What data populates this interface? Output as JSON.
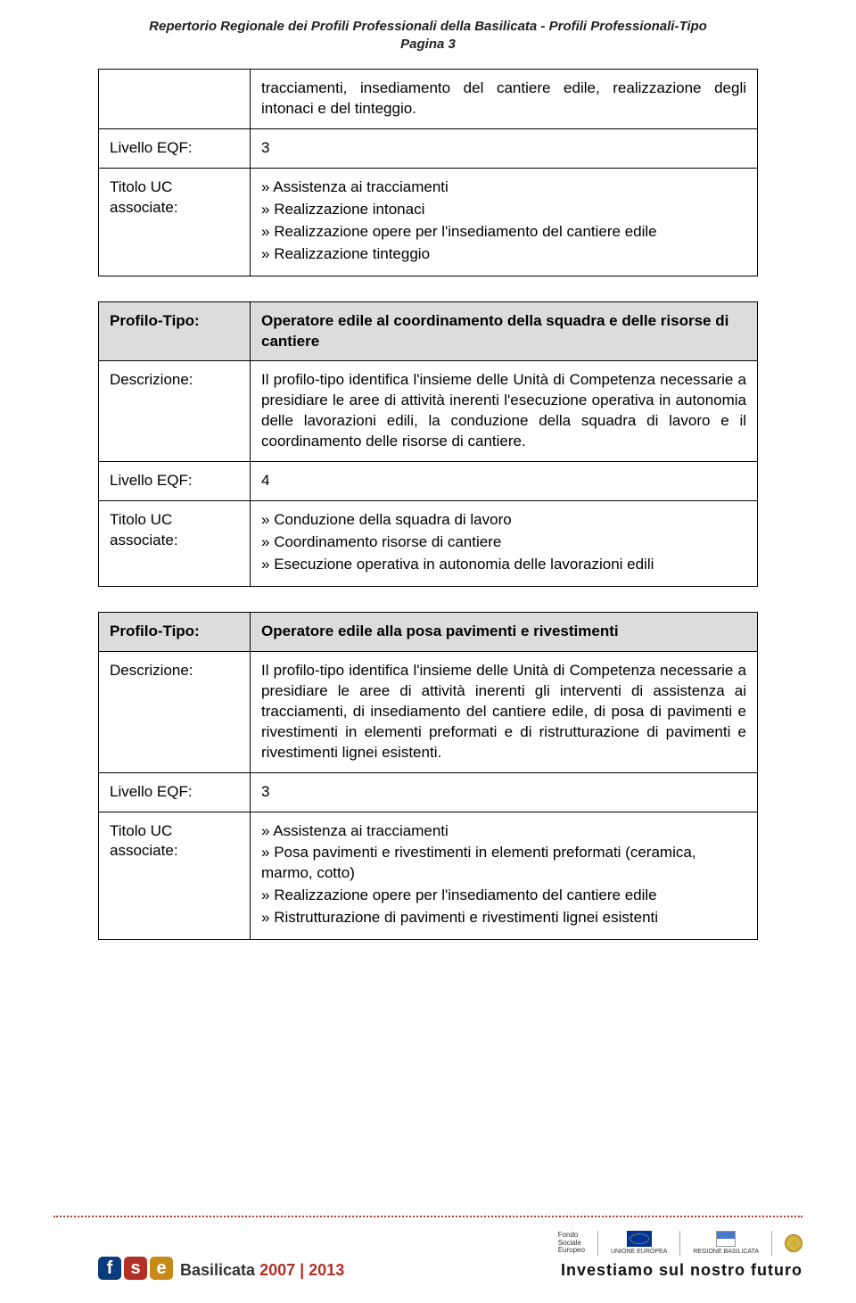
{
  "header": {
    "title_line1": "Repertorio Regionale dei Profili Professionali della Basilicata - Profili Professionali-Tipo",
    "title_line2": "Pagina 3"
  },
  "labels": {
    "livello_eqf": "Livello EQF:",
    "titolo_uc": "Titolo UC associate:",
    "profilo_tipo": "Profilo-Tipo:",
    "descrizione": "Descrizione:"
  },
  "table1": {
    "top_text": "tracciamenti, insediamento del cantiere edile, realizzazione degli intonaci e del tinteggio.",
    "eqf": "3",
    "uc": [
      "Assistenza ai tracciamenti",
      "Realizzazione intonaci",
      "Realizzazione opere per l'insediamento del cantiere edile",
      "Realizzazione tinteggio"
    ]
  },
  "table2": {
    "profilo": "Operatore edile al coordinamento della squadra e delle risorse di cantiere",
    "descrizione": "Il profilo-tipo identifica l'insieme delle Unità di Competenza necessarie a presidiare le aree di attività inerenti l'esecuzione operativa in autonomia delle lavorazioni edili, la conduzione della squadra di lavoro e il coordinamento delle risorse di cantiere.",
    "eqf": "4",
    "uc": [
      "Conduzione della squadra di lavoro",
      "Coordinamento risorse di cantiere",
      "Esecuzione operativa in autonomia delle lavorazioni edili"
    ]
  },
  "table3": {
    "profilo": "Operatore edile alla posa pavimenti e rivestimenti",
    "descrizione": "Il profilo-tipo identifica l'insieme delle Unità di Competenza necessarie a presidiare le aree di attività inerenti gli interventi di assistenza ai tracciamenti, di insediamento del cantiere edile, di posa di pavimenti e rivestimenti in elementi preformati e di ristrutturazione di pavimenti e rivestimenti lignei esistenti.",
    "eqf": "3",
    "uc": [
      "Assistenza ai tracciamenti",
      "Posa pavimenti e rivestimenti in elementi preformati (ceramica, marmo, cotto)",
      "Realizzazione opere per l'insediamento del cantiere edile",
      "Ristrutturazione di pavimenti e rivestimenti lignei esistenti"
    ]
  },
  "footer": {
    "fse_text_main": "Basilicata",
    "fse_text_years": "2007 | 2013",
    "fondo": "Fondo",
    "sociale": "Sociale",
    "europeo": "Europeo",
    "unione": "UNIONE EUROPEA",
    "regione": "REGIONE BASILICATA",
    "slogan": "Investiamo sul nostro futuro"
  },
  "colors": {
    "dotted_sep": "#b23a2e",
    "shade": "#dcdcdc"
  }
}
